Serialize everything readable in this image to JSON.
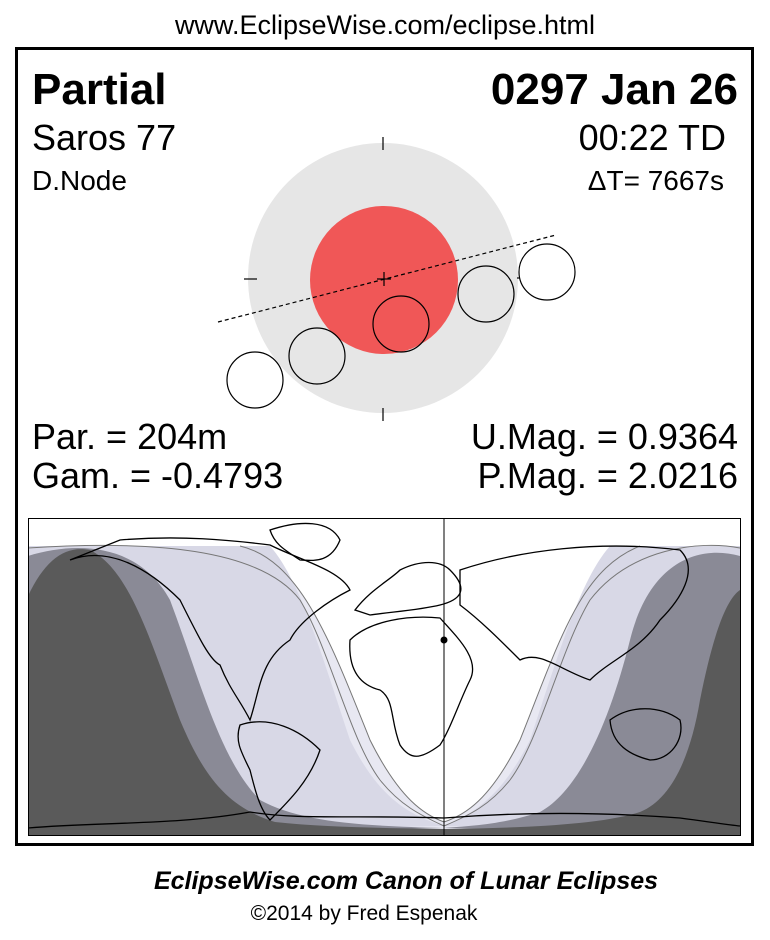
{
  "header_url": "www.EclipseWise.com/eclipse.html",
  "eclipse": {
    "type": "Partial",
    "date": "0297 Jan 26",
    "saros": "Saros  77",
    "time": "00:22 TD",
    "node": "D.Node",
    "delta_t": "ΔT=   7667s",
    "partial_duration": "Par. = 204m",
    "gamma": "Gam. = -0.4793",
    "umbral_magnitude": "U.Mag. = 0.9364",
    "penumbral_magnitude": "P.Mag. = 2.0216"
  },
  "colors": {
    "umbra": "#f05757",
    "penumbra": "#e6e6e6",
    "night": "#5a5a5a",
    "penumbral_band": "#8a8a96",
    "partial_band": "#d8d8e6",
    "light_band": "#e8e8f2"
  },
  "footer": {
    "title": "EclipseWise.com Canon of Lunar Eclipses",
    "copyright": "©2014 by Fred Espenak"
  }
}
